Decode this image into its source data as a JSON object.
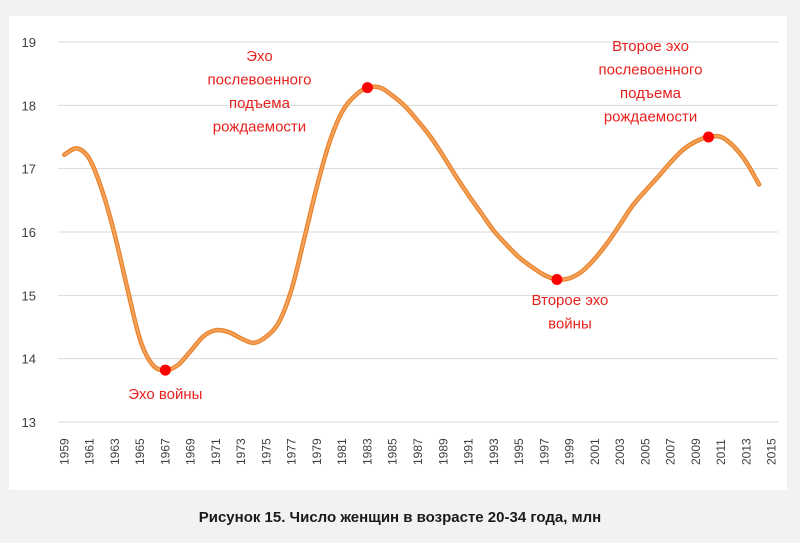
{
  "caption": "Рисунок 15. Число женщин в возрасте 20-34 года, млн",
  "chart_data": {
    "type": "line",
    "title": "",
    "xlabel": "",
    "ylabel": "",
    "ylim": [
      13,
      19
    ],
    "y_ticks": [
      13,
      14,
      15,
      16,
      17,
      18,
      19
    ],
    "x_range": [
      1959,
      2015
    ],
    "x_ticks": [
      1959,
      1961,
      1963,
      1965,
      1967,
      1969,
      1971,
      1973,
      1975,
      1977,
      1979,
      1981,
      1983,
      1985,
      1987,
      1989,
      1991,
      1993,
      1995,
      1997,
      1999,
      2001,
      2003,
      2005,
      2007,
      2009,
      2011,
      2013,
      2015
    ],
    "grid": "horizontal",
    "colors": {
      "line": "#f4a15a",
      "line_edge": "#e8822a",
      "marker": "#ff0000",
      "annotation": "#e8211d"
    },
    "series": [
      {
        "x": [
          1959,
          1960,
          1961,
          1962,
          1963,
          1964,
          1965,
          1966,
          1967,
          1968,
          1969,
          1970,
          1971,
          1972,
          1973,
          1974,
          1975,
          1976,
          1977,
          1978,
          1979,
          1980,
          1981,
          1982,
          1983,
          1984,
          1985,
          1986,
          1987,
          1988,
          1989,
          1990,
          1991,
          1992,
          1993,
          1994,
          1995,
          1996,
          1997,
          1998,
          1999,
          2000,
          2001,
          2002,
          2003,
          2004,
          2005,
          2006,
          2007,
          2008,
          2009,
          2010,
          2011,
          2012,
          2013,
          2014
        ],
        "y": [
          17.22,
          17.32,
          17.15,
          16.65,
          15.95,
          15.1,
          14.3,
          13.9,
          13.82,
          13.9,
          14.12,
          14.35,
          14.45,
          14.42,
          14.32,
          14.25,
          14.35,
          14.58,
          15.1,
          15.9,
          16.72,
          17.42,
          17.9,
          18.15,
          18.28,
          18.28,
          18.15,
          17.98,
          17.75,
          17.5,
          17.2,
          16.88,
          16.58,
          16.3,
          16.02,
          15.8,
          15.6,
          15.45,
          15.32,
          15.25,
          15.27,
          15.38,
          15.58,
          15.83,
          16.12,
          16.42,
          16.65,
          16.87,
          17.1,
          17.3,
          17.43,
          17.5,
          17.5,
          17.35,
          17.1,
          16.75
        ]
      }
    ],
    "annotations": [
      {
        "x": 1967,
        "y": 13.82,
        "lines": [
          "Эхо войны"
        ]
      },
      {
        "x": 1983,
        "y": 18.28,
        "lines": [
          "Эхо",
          "послевоенного",
          "подъема",
          "рождаемости"
        ]
      },
      {
        "x": 1998,
        "y": 15.25,
        "lines": [
          "Второе эхо",
          "войны"
        ]
      },
      {
        "x": 2010,
        "y": 17.5,
        "lines": [
          "Второе эхо",
          "послевоенного",
          "подъема",
          "рождаемости"
        ]
      }
    ]
  }
}
